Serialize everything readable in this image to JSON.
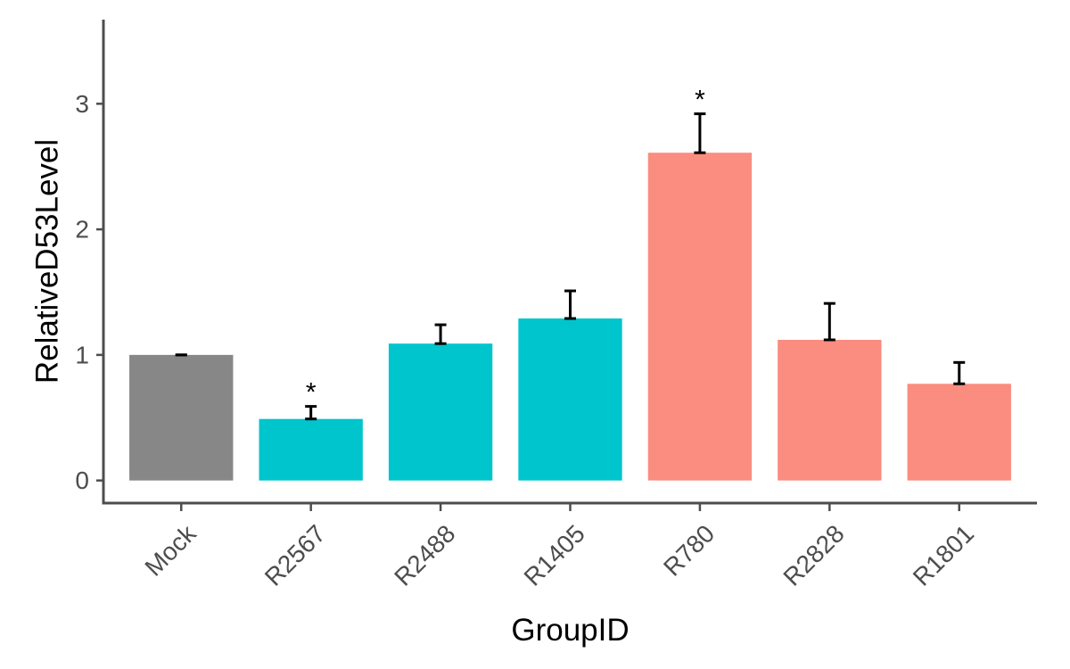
{
  "chart_data": {
    "type": "bar",
    "xlabel": "GroupID",
    "ylabel": "RelativeD53Level",
    "ylim": [
      -0.18,
      3.67
    ],
    "yticks": [
      0,
      1,
      2,
      3
    ],
    "grid": false,
    "legend": "none",
    "categories": [
      "Mock",
      "R2567",
      "R2488",
      "R1405",
      "R780",
      "R2828",
      "R1801"
    ],
    "values": [
      1.0,
      0.49,
      1.09,
      1.29,
      2.61,
      1.12,
      0.77
    ],
    "error_upper": [
      1.0,
      0.59,
      1.24,
      1.51,
      2.92,
      1.41,
      0.94
    ],
    "significance": [
      "",
      "*",
      "",
      "",
      "*",
      "",
      ""
    ],
    "colors": [
      "#878787",
      "#00C5CC",
      "#00C5CC",
      "#00C5CC",
      "#FA8C80",
      "#FA8C80",
      "#FA8C80"
    ]
  }
}
